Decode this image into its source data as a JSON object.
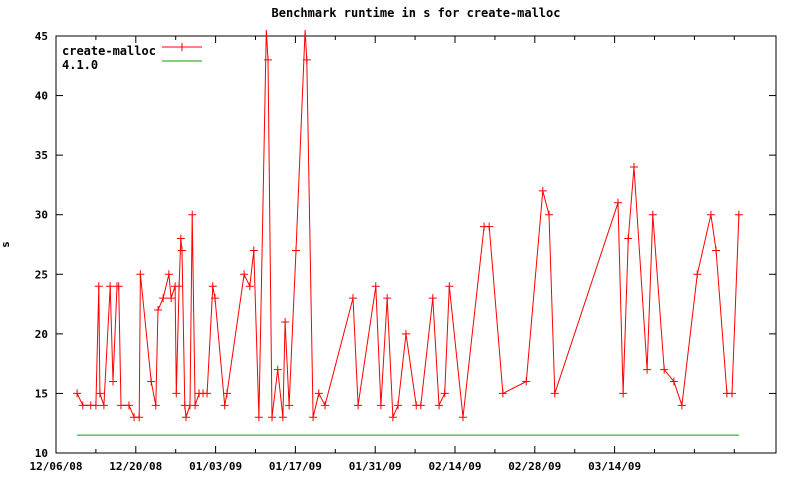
{
  "title": "Benchmark runtime in s for create-malloc",
  "ylabel": "s",
  "colors": {
    "series_red": "#ff0000",
    "series_green": "#00a400",
    "axis": "#000000",
    "background": "#ffffff"
  },
  "legend": {
    "items": [
      {
        "label": "create-malloc",
        "color": "#ff0000",
        "marker": "plus"
      },
      {
        "label": "4.1.0",
        "color": "#00a400",
        "marker": "none"
      }
    ]
  },
  "chart_data": {
    "type": "line",
    "title": "Benchmark runtime in s for create-malloc",
    "xlabel": "",
    "ylabel": "s",
    "ylim": [
      10,
      45
    ],
    "xlim_days": [
      0,
      126
    ],
    "grid": false,
    "legend_position": "top-left-inside",
    "x_axis": {
      "unit": "days since 12/06/08",
      "major_tick_days": [
        0,
        14,
        28,
        42,
        56,
        70,
        84,
        98
      ],
      "major_tick_labels": [
        "12/06/08",
        "12/20/08",
        "01/03/09",
        "01/17/09",
        "01/31/09",
        "02/14/09",
        "02/28/09",
        "03/14/09"
      ],
      "minor_tick_days": [
        7,
        21,
        35,
        49,
        63,
        77,
        91,
        105,
        112,
        119
      ]
    },
    "y_axis": {
      "tick_values": [
        10,
        15,
        20,
        25,
        30,
        35,
        40,
        45
      ],
      "tick_labels": [
        "10",
        "15",
        "20",
        "25",
        "30",
        "35",
        "40",
        "45"
      ]
    },
    "series": [
      {
        "name": "create-malloc",
        "color": "#ff0000",
        "marker": "plus",
        "points": [
          [
            3.7,
            15
          ],
          [
            4.7,
            14
          ],
          [
            6.1,
            14
          ],
          [
            7.0,
            14
          ],
          [
            7.5,
            24
          ],
          [
            7.7,
            15
          ],
          [
            8.4,
            14
          ],
          [
            9.5,
            24
          ],
          [
            10.0,
            16
          ],
          [
            10.7,
            24
          ],
          [
            11.0,
            24
          ],
          [
            11.4,
            14
          ],
          [
            12.8,
            14
          ],
          [
            13.7,
            13
          ],
          [
            14.6,
            13
          ],
          [
            14.8,
            25
          ],
          [
            16.7,
            16
          ],
          [
            17.5,
            14
          ],
          [
            17.9,
            22
          ],
          [
            18.8,
            23
          ],
          [
            19.8,
            25
          ],
          [
            20.2,
            23
          ],
          [
            20.9,
            24
          ],
          [
            21.1,
            15
          ],
          [
            21.6,
            24
          ],
          [
            21.9,
            28
          ],
          [
            22.1,
            27
          ],
          [
            22.6,
            14
          ],
          [
            22.8,
            13
          ],
          [
            23.5,
            14
          ],
          [
            23.9,
            30
          ],
          [
            24.4,
            14
          ],
          [
            25.1,
            15
          ],
          [
            25.8,
            15
          ],
          [
            26.5,
            15
          ],
          [
            27.5,
            24
          ],
          [
            27.9,
            23
          ],
          [
            29.6,
            14
          ],
          [
            30.0,
            15
          ],
          [
            33.0,
            25
          ],
          [
            34.0,
            24
          ],
          [
            34.7,
            27
          ],
          [
            35.6,
            13
          ],
          [
            36.9,
            45.5
          ],
          [
            37.2,
            43
          ],
          [
            37.9,
            13
          ],
          [
            38.9,
            17
          ],
          [
            39.8,
            13
          ],
          [
            40.2,
            21
          ],
          [
            40.9,
            14
          ],
          [
            42.1,
            27
          ],
          [
            43.7,
            45.5
          ],
          [
            44.0,
            43
          ],
          [
            45.1,
            13
          ],
          [
            46.1,
            15
          ],
          [
            47.2,
            14
          ],
          [
            52.1,
            23
          ],
          [
            53.0,
            14
          ],
          [
            56.1,
            24
          ],
          [
            57.0,
            14
          ],
          [
            58.1,
            23
          ],
          [
            59.1,
            13
          ],
          [
            60.0,
            14
          ],
          [
            61.4,
            20
          ],
          [
            63.2,
            14
          ],
          [
            64.0,
            14
          ],
          [
            66.1,
            23
          ],
          [
            67.2,
            14
          ],
          [
            68.2,
            15
          ],
          [
            69.0,
            24
          ],
          [
            71.4,
            13
          ],
          [
            75.1,
            29
          ],
          [
            76.0,
            29
          ],
          [
            78.4,
            15
          ],
          [
            82.5,
            16
          ],
          [
            85.4,
            32
          ],
          [
            86.5,
            30
          ],
          [
            87.5,
            15
          ],
          [
            98.6,
            31
          ],
          [
            99.5,
            15
          ],
          [
            100.4,
            28
          ],
          [
            101.4,
            34
          ],
          [
            103.7,
            17
          ],
          [
            104.7,
            30
          ],
          [
            106.7,
            17
          ],
          [
            108.4,
            16
          ],
          [
            109.8,
            14
          ],
          [
            112.5,
            25
          ],
          [
            114.9,
            30
          ],
          [
            115.8,
            27
          ],
          [
            117.7,
            15
          ],
          [
            118.6,
            15
          ],
          [
            119.8,
            30
          ]
        ]
      },
      {
        "name": "4.1.0",
        "color": "#00a400",
        "marker": "none",
        "points": [
          [
            3.7,
            11.5
          ],
          [
            119.8,
            11.5
          ]
        ]
      }
    ]
  }
}
